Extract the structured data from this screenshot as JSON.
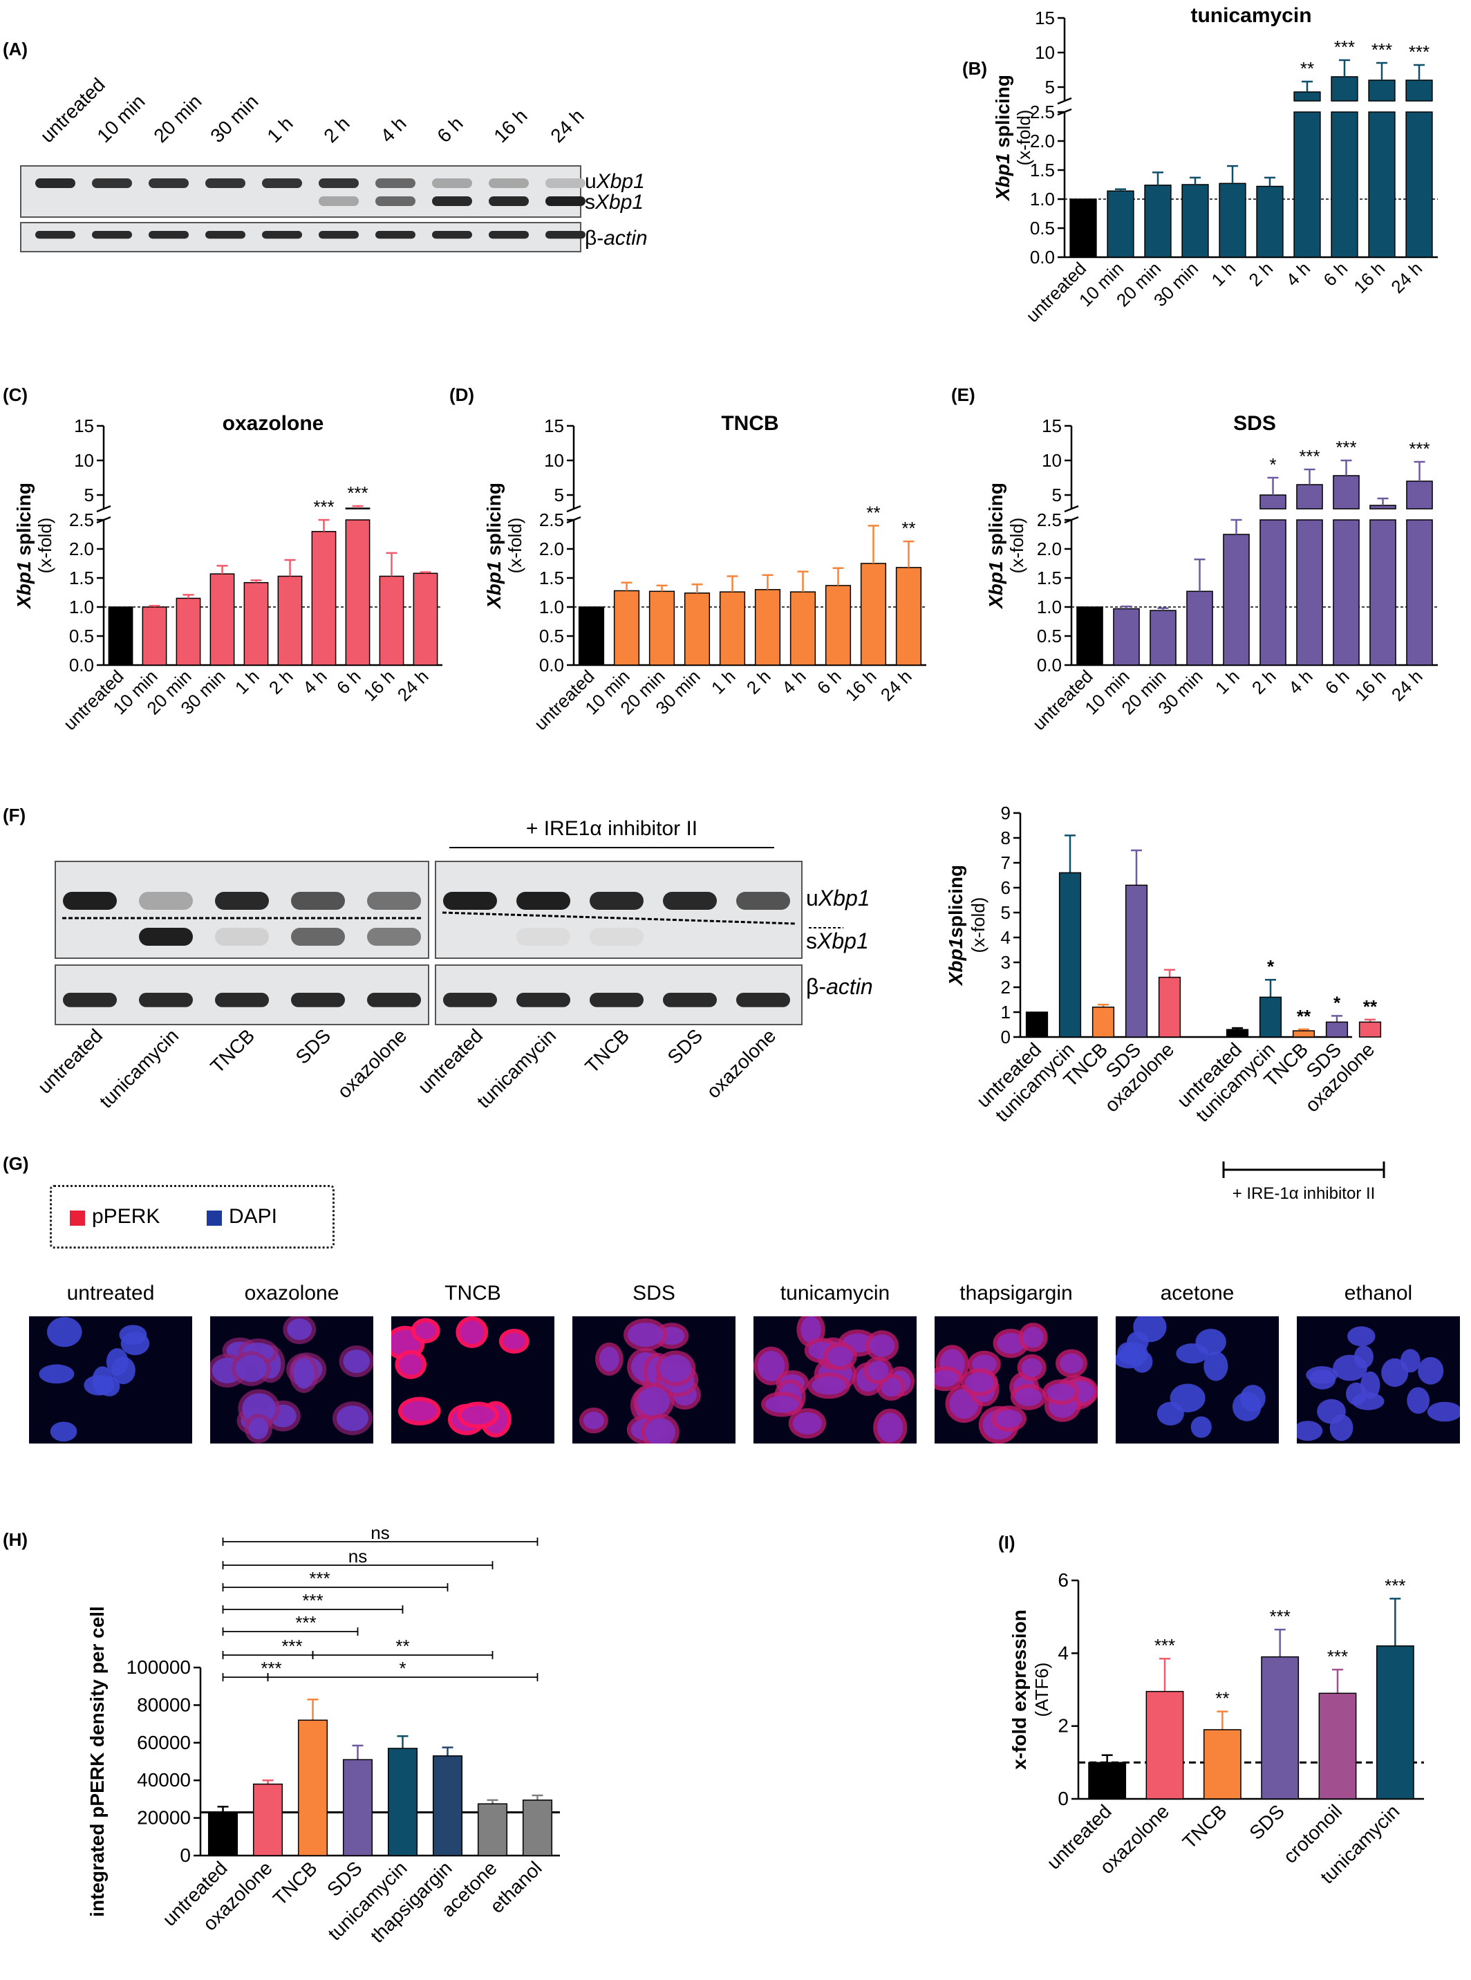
{
  "panels": {
    "A": {
      "letter": "(A)",
      "lanes": [
        "untreated",
        "10 min",
        "20 min",
        "30 min",
        "1 h",
        "2 h",
        "4 h",
        "6 h",
        "16 h",
        "24 h"
      ],
      "band_labels": {
        "u": "u",
        "u_gene": "Xbp1",
        "s": "s",
        "s_gene": "Xbp1",
        "actin": "β-actin"
      },
      "spliced_intensity": [
        0,
        0,
        0,
        0,
        0,
        0.3,
        0.6,
        0.9,
        0.9,
        0.95
      ],
      "unspliced_intensity": [
        0.9,
        0.85,
        0.85,
        0.85,
        0.85,
        0.85,
        0.6,
        0.3,
        0.3,
        0.2
      ]
    },
    "B": {
      "letter": "(B)"
    },
    "C": {
      "letter": "(C)"
    },
    "D": {
      "letter": "(D)"
    },
    "E": {
      "letter": "(E)"
    },
    "F": {
      "letter": "(F)",
      "inhibitor_header": "+ IRE1α inhibitor II",
      "lanes": [
        "untreated",
        "tunicamycin",
        "TNCB",
        "SDS",
        "oxazolone",
        "untreated",
        "tunicamycin",
        "TNCB",
        "SDS",
        "oxazolone"
      ],
      "band_labels": {
        "u": "u",
        "u_gene": "Xbp1",
        "s": "s",
        "s_gene": "Xbp1",
        "actin": "β-actin"
      },
      "spliced_intensity": [
        0,
        0.95,
        0.1,
        0.6,
        0.5,
        0,
        0.05,
        0.05,
        0,
        0
      ],
      "unspliced_intensity": [
        0.95,
        0.3,
        0.9,
        0.7,
        0.55,
        0.95,
        0.95,
        0.9,
        0.9,
        0.7
      ],
      "bracket_label": "+ IRE-1α inhibitor II"
    },
    "G": {
      "letter": "(G)",
      "legend": [
        {
          "label": "pPERK",
          "color": "#e8203a"
        },
        {
          "label": "DAPI",
          "color": "#1f3a9e"
        }
      ],
      "images": [
        {
          "label": "untreated",
          "red": 0.0,
          "nuclei": 10
        },
        {
          "label": "oxazolone",
          "red": 0.35,
          "nuclei": 14
        },
        {
          "label": "TNCB",
          "red": 1.0,
          "nuclei": 9
        },
        {
          "label": "SDS",
          "red": 0.55,
          "nuclei": 14
        },
        {
          "label": "tunicamycin",
          "red": 0.6,
          "nuclei": 18
        },
        {
          "label": "thapsigargin",
          "red": 0.65,
          "nuclei": 18
        },
        {
          "label": "acetone",
          "red": 0.0,
          "nuclei": 14
        },
        {
          "label": "ethanol",
          "red": 0.05,
          "nuclei": 16
        }
      ]
    },
    "H": {
      "letter": "(H)"
    },
    "I": {
      "letter": "(I)"
    }
  },
  "chart_data": [
    {
      "id": "B",
      "type": "bar",
      "title": "tunicamycin",
      "ylabel_gene": "Xbp1",
      "ylabel_rest": " splicing",
      "ylabel2": "(x-fold)",
      "categories": [
        "untreated",
        "10 min",
        "20 min",
        "30 min",
        "1 h",
        "2 h",
        "4 h",
        "6 h",
        "16 h",
        "24 h"
      ],
      "values": [
        1.0,
        1.14,
        1.24,
        1.25,
        1.27,
        1.22,
        4.3,
        6.5,
        6.0,
        6.0
      ],
      "errors": [
        0,
        0.03,
        0.22,
        0.12,
        0.3,
        0.15,
        1.5,
        2.4,
        2.5,
        2.2
      ],
      "significance": [
        "",
        "",
        "",
        "",
        "",
        "",
        "**",
        "***",
        "***",
        "***"
      ],
      "colors": [
        "#000000",
        "#0d4e6b",
        "#0d4e6b",
        "#0d4e6b",
        "#0d4e6b",
        "#0d4e6b",
        "#0d4e6b",
        "#0d4e6b",
        "#0d4e6b",
        "#0d4e6b"
      ],
      "lower_ticks": [
        "0.0",
        "0.5",
        "1.0",
        "1.5",
        "2.0",
        "2.5"
      ],
      "upper_ticks": [
        "5",
        "10",
        "15"
      ],
      "baseline": 1.0
    },
    {
      "id": "C",
      "type": "bar",
      "title": "oxazolone",
      "ylabel_gene": "Xbp1",
      "ylabel_rest": " splicing",
      "ylabel2": "(x-fold)",
      "categories": [
        "untreated",
        "10 min",
        "20 min",
        "30 min",
        "1 h",
        "2 h",
        "4 h",
        "6 h",
        "16 h",
        "24 h"
      ],
      "values": [
        1.0,
        1.0,
        1.15,
        1.57,
        1.42,
        1.53,
        2.3,
        3.0,
        1.53,
        1.58
      ],
      "errors": [
        0,
        0.02,
        0.06,
        0.14,
        0.04,
        0.28,
        0.85,
        0.4,
        0.4,
        0.02
      ],
      "significance": [
        "",
        "",
        "",
        "",
        "",
        "",
        "***",
        "***",
        "",
        ""
      ],
      "colors": [
        "#000000",
        "#f05a6a",
        "#f05a6a",
        "#f05a6a",
        "#f05a6a",
        "#f05a6a",
        "#f05a6a",
        "#f05a6a",
        "#f05a6a",
        "#f05a6a"
      ],
      "lower_ticks": [
        "0.0",
        "0.5",
        "1.0",
        "1.5",
        "2.0",
        "2.5"
      ],
      "upper_ticks": [
        "5",
        "10",
        "15"
      ],
      "baseline": 1.0
    },
    {
      "id": "D",
      "type": "bar",
      "title": "TNCB",
      "ylabel_gene": "Xbp1",
      "ylabel_rest": " splicing",
      "ylabel2": "(x-fold)",
      "categories": [
        "untreated",
        "10 min",
        "20 min",
        "30 min",
        "1 h",
        "2 h",
        "4 h",
        "6 h",
        "16 h",
        "24 h"
      ],
      "values": [
        1.0,
        1.28,
        1.27,
        1.24,
        1.26,
        1.3,
        1.26,
        1.37,
        1.75,
        1.68
      ],
      "errors": [
        0,
        0.14,
        0.1,
        0.15,
        0.27,
        0.25,
        0.35,
        0.3,
        0.65,
        0.45
      ],
      "significance": [
        "",
        "",
        "",
        "",
        "",
        "",
        "",
        "",
        "**",
        "**"
      ],
      "colors": [
        "#000000",
        "#f7843a",
        "#f7843a",
        "#f7843a",
        "#f7843a",
        "#f7843a",
        "#f7843a",
        "#f7843a",
        "#f7843a",
        "#f7843a"
      ],
      "lower_ticks": [
        "0.0",
        "0.5",
        "1.0",
        "1.5",
        "2.0",
        "2.5"
      ],
      "upper_ticks": [
        "5",
        "10",
        "15"
      ],
      "baseline": 1.0
    },
    {
      "id": "E",
      "type": "bar",
      "title": "SDS",
      "ylabel_gene": "Xbp1",
      "ylabel_rest": " splicing",
      "ylabel2": "(x-fold)",
      "categories": [
        "untreated",
        "10 min",
        "20 min",
        "30 min",
        "1 h",
        "2 h",
        "4 h",
        "6 h",
        "16 h",
        "24 h"
      ],
      "values": [
        1.0,
        0.97,
        0.94,
        1.27,
        2.25,
        5.0,
        6.5,
        7.8,
        3.5,
        7.0
      ],
      "errors": [
        0,
        0.04,
        0.04,
        0.55,
        0.9,
        2.5,
        2.2,
        2.2,
        1.0,
        2.8
      ],
      "significance": [
        "",
        "",
        "",
        "",
        "",
        "*",
        "***",
        "***",
        "",
        "***"
      ],
      "colors": [
        "#000000",
        "#6e5aa0",
        "#6e5aa0",
        "#6e5aa0",
        "#6e5aa0",
        "#6e5aa0",
        "#6e5aa0",
        "#6e5aa0",
        "#6e5aa0",
        "#6e5aa0"
      ],
      "lower_ticks": [
        "0.0",
        "0.5",
        "1.0",
        "1.5",
        "2.0",
        "2.5"
      ],
      "upper_ticks": [
        "5",
        "10",
        "15"
      ],
      "baseline": 1.0
    },
    {
      "id": "F",
      "type": "bar",
      "ylabel_gene": "Xbp1",
      "ylabel_rest": "splicing",
      "ylabel2": "(x-fold)",
      "categories": [
        "untreated",
        "tunicamycin",
        "TNCB",
        "SDS",
        "oxazolone",
        "untreated",
        "tunicamycin",
        "TNCB",
        "SDS",
        "oxazolone"
      ],
      "values": [
        1.0,
        6.6,
        1.2,
        6.1,
        2.4,
        0.3,
        1.6,
        0.25,
        0.6,
        0.6
      ],
      "errors": [
        0,
        1.5,
        0.1,
        1.4,
        0.3,
        0.06,
        0.7,
        0.06,
        0.25,
        0.1
      ],
      "significance": [
        "",
        "",
        "",
        "",
        "",
        "",
        "*",
        "**",
        "*",
        "**"
      ],
      "colors": [
        "#000000",
        "#0d4e6b",
        "#f7843a",
        "#6e5aa0",
        "#f05a6a",
        "#000000",
        "#0d4e6b",
        "#f7843a",
        "#6e5aa0",
        "#f05a6a"
      ],
      "yticks": [
        "0",
        "1",
        "2",
        "3",
        "4",
        "5",
        "6",
        "7",
        "8",
        "9"
      ],
      "ylim": [
        0,
        9
      ]
    },
    {
      "id": "H",
      "type": "bar",
      "ylabel": "integrated pPERK density per cell",
      "categories": [
        "untreated",
        "oxazolone",
        "TNCB",
        "SDS",
        "tunicamycin",
        "thapsigargin",
        "acetone",
        "ethanol"
      ],
      "values": [
        23000,
        38000,
        72000,
        51000,
        57000,
        53000,
        27500,
        29500
      ],
      "errors": [
        3000,
        2000,
        11000,
        7500,
        6500,
        4500,
        2000,
        2500
      ],
      "colors": [
        "#000000",
        "#f05a6a",
        "#f7843a",
        "#6e5aa0",
        "#0d4e6b",
        "#24456e",
        "#808080",
        "#808080"
      ],
      "yticks": [
        "0",
        "20000",
        "40000",
        "60000",
        "80000",
        "100000"
      ],
      "ylim": [
        0,
        100000
      ],
      "baseline": 23000,
      "comparisons": [
        {
          "from": 0,
          "to": 7,
          "label": "ns"
        },
        {
          "from": 0,
          "to": 6,
          "label": "ns"
        },
        {
          "from": 0,
          "to": 5,
          "label": "***"
        },
        {
          "from": 0,
          "to": 4,
          "label": "***"
        },
        {
          "from": 0,
          "to": 3,
          "label": "***"
        },
        {
          "from": 0,
          "to": 2,
          "label": "***"
        },
        {
          "from": 0,
          "to": 1,
          "label": "***"
        },
        {
          "from": 2,
          "to": 6,
          "label": "**"
        },
        {
          "from": 1,
          "to": 7,
          "label": "*"
        }
      ]
    },
    {
      "id": "I",
      "type": "bar",
      "ylabel": "x-fold expression",
      "ylabel2": "(ATF6)",
      "categories": [
        "untreated",
        "oxazolone",
        "TNCB",
        "SDS",
        "crotonoil",
        "tunicamycin"
      ],
      "values": [
        1.0,
        2.95,
        1.9,
        3.9,
        2.9,
        4.2
      ],
      "errors": [
        0.2,
        0.9,
        0.5,
        0.75,
        0.65,
        1.3
      ],
      "significance": [
        "",
        "***",
        "**",
        "***",
        "***",
        "***"
      ],
      "colors": [
        "#000000",
        "#f05a6a",
        "#f7843a",
        "#6e5aa0",
        "#a14f8f",
        "#0d4e6b"
      ],
      "yticks": [
        "0",
        "2",
        "4",
        "6"
      ],
      "ylim": [
        0,
        6
      ],
      "baseline": 1.0
    }
  ]
}
